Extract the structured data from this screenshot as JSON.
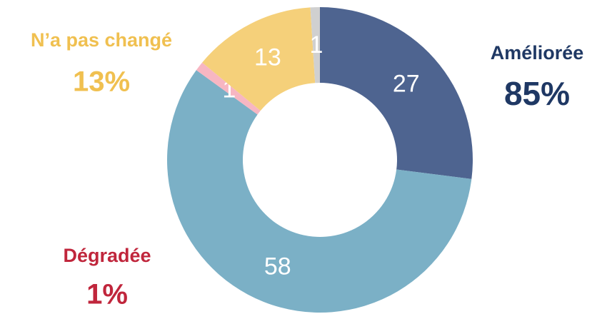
{
  "chart_data": {
    "type": "donut",
    "categories": [
      null,
      null,
      null,
      null,
      null
    ],
    "values": [
      27,
      58,
      1,
      13,
      1
    ],
    "colors": [
      "#4e6490",
      "#7bb0c6",
      "#f7b6c2",
      "#f5d07a",
      "#d0d0d0"
    ],
    "groups": {
      "names": [
        "Améliorée",
        "Dégradée",
        "N’a pas changé"
      ],
      "values": [
        85,
        1,
        13
      ],
      "value_labels": [
        "85%",
        "1%",
        "13%"
      ],
      "colors": [
        "#1f3864",
        "#c0263c",
        "#f0c050"
      ]
    }
  }
}
